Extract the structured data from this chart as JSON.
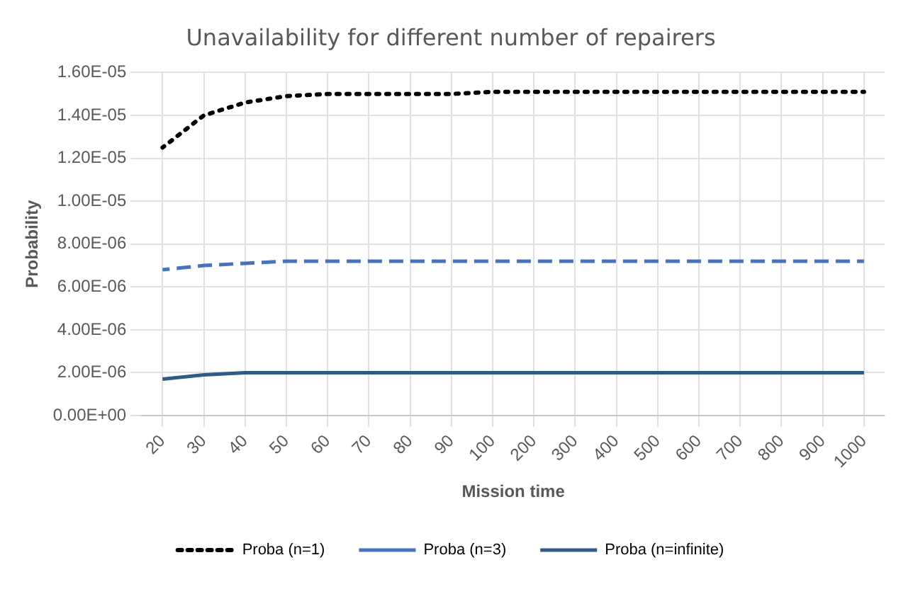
{
  "chart_data": {
    "type": "line",
    "title": "Unavailability for different number of repairers",
    "xlabel": "Mission time",
    "ylabel": "Probability",
    "categories": [
      "20",
      "30",
      "40",
      "50",
      "60",
      "70",
      "80",
      "90",
      "100",
      "200",
      "300",
      "400",
      "500",
      "600",
      "700",
      "800",
      "900",
      "1000"
    ],
    "series": [
      {
        "name": "Proba (n=1)",
        "color": "#000000",
        "line_style": "dotted",
        "values": [
          1.25e-05,
          1.4e-05,
          1.46e-05,
          1.49e-05,
          1.5e-05,
          1.5e-05,
          1.5e-05,
          1.5e-05,
          1.51e-05,
          1.51e-05,
          1.51e-05,
          1.51e-05,
          1.51e-05,
          1.51e-05,
          1.51e-05,
          1.51e-05,
          1.51e-05,
          1.51e-05
        ]
      },
      {
        "name": "Proba (n=3)",
        "color": "#4472c4",
        "line_style": "dashed",
        "values": [
          6.8e-06,
          7e-06,
          7.1e-06,
          7.2e-06,
          7.2e-06,
          7.2e-06,
          7.2e-06,
          7.2e-06,
          7.2e-06,
          7.2e-06,
          7.2e-06,
          7.2e-06,
          7.2e-06,
          7.2e-06,
          7.2e-06,
          7.2e-06,
          7.2e-06,
          7.2e-06
        ]
      },
      {
        "name": "Proba (n=infinite)",
        "color": "#2e5c8a",
        "line_style": "solid",
        "values": [
          1.7e-06,
          1.9e-06,
          2e-06,
          2e-06,
          2e-06,
          2e-06,
          2e-06,
          2e-06,
          2e-06,
          2e-06,
          2e-06,
          2e-06,
          2e-06,
          2e-06,
          2e-06,
          2e-06,
          2e-06,
          2e-06
        ]
      }
    ],
    "ylim": [
      0,
      1.6e-05
    ],
    "yticks": [
      {
        "value": 0,
        "label": "0.00E+00"
      },
      {
        "value": 2e-06,
        "label": "2.00E-06"
      },
      {
        "value": 4e-06,
        "label": "4.00E-06"
      },
      {
        "value": 6e-06,
        "label": "6.00E-06"
      },
      {
        "value": 8e-06,
        "label": "8.00E-06"
      },
      {
        "value": 1e-05,
        "label": "1.00E-05"
      },
      {
        "value": 1.2e-05,
        "label": "1.20E-05"
      },
      {
        "value": 1.4e-05,
        "label": "1.40E-05"
      },
      {
        "value": 1.6e-05,
        "label": "1.60E-05"
      }
    ],
    "grid": true,
    "legend": "bottom",
    "marker": "none"
  }
}
